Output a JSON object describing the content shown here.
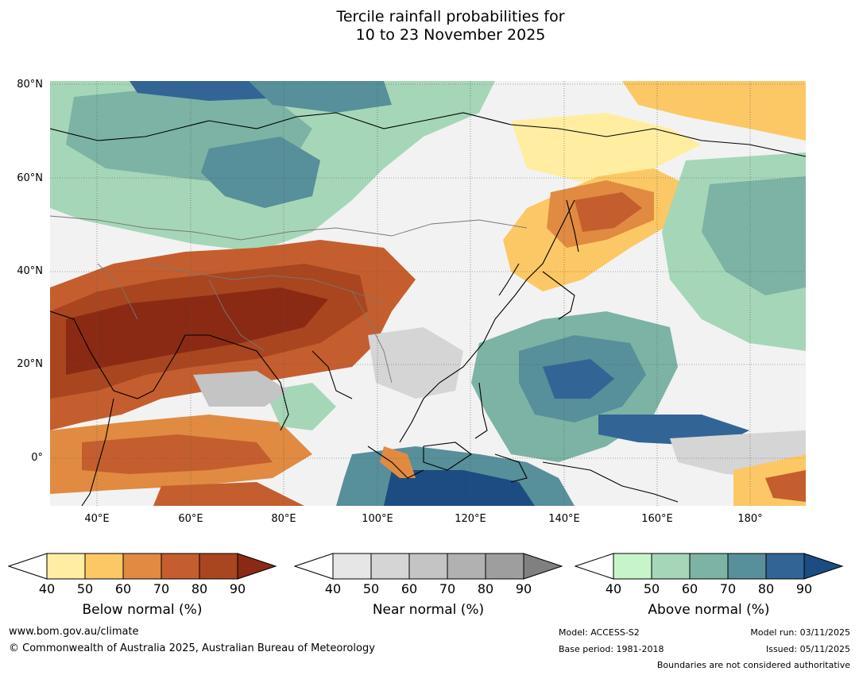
{
  "title": {
    "line1": "Tercile rainfall probabilities for",
    "line2": "10 to 23 November 2025"
  },
  "map": {
    "lat_labels": [
      "80°N",
      "60°N",
      "40°N",
      "20°N",
      "0°"
    ],
    "lon_labels": [
      "40°E",
      "60°E",
      "80°E",
      "100°E",
      "120°E",
      "140°E",
      "160°E",
      "180°"
    ]
  },
  "legends": [
    {
      "label": "Below normal (%)",
      "ticks": [
        "40",
        "50",
        "60",
        "70",
        "80",
        "90"
      ],
      "colors": [
        "#ffeea1",
        "#fcc865",
        "#e08b41",
        "#c55e2e",
        "#a9461f",
        "#8a2a14"
      ]
    },
    {
      "label": "Near normal (%)",
      "ticks": [
        "40",
        "50",
        "60",
        "70",
        "80",
        "90"
      ],
      "colors": [
        "#e6e6e6",
        "#d5d5d5",
        "#c4c4c4",
        "#b1b1b1",
        "#9e9e9e",
        "#808080"
      ]
    },
    {
      "label": "Above normal (%)",
      "ticks": [
        "40",
        "50",
        "60",
        "70",
        "80",
        "90"
      ],
      "colors": [
        "#c7f5c9",
        "#a5d6b8",
        "#7cb3a5",
        "#578f9a",
        "#326596",
        "#1d4c82"
      ]
    }
  ],
  "footer": {
    "website": "www.bom.gov.au/climate",
    "copyright": "© Commonwealth of Australia 2025, Australian Bureau of Meteorology",
    "model": "Model: ACCESS-S2",
    "base_period": "Base period: 1981-2018",
    "model_run": "Model run: 03/11/2025",
    "issued": "Issued: 05/11/2025",
    "disclaimer": "Boundaries are not considered authoritative"
  }
}
